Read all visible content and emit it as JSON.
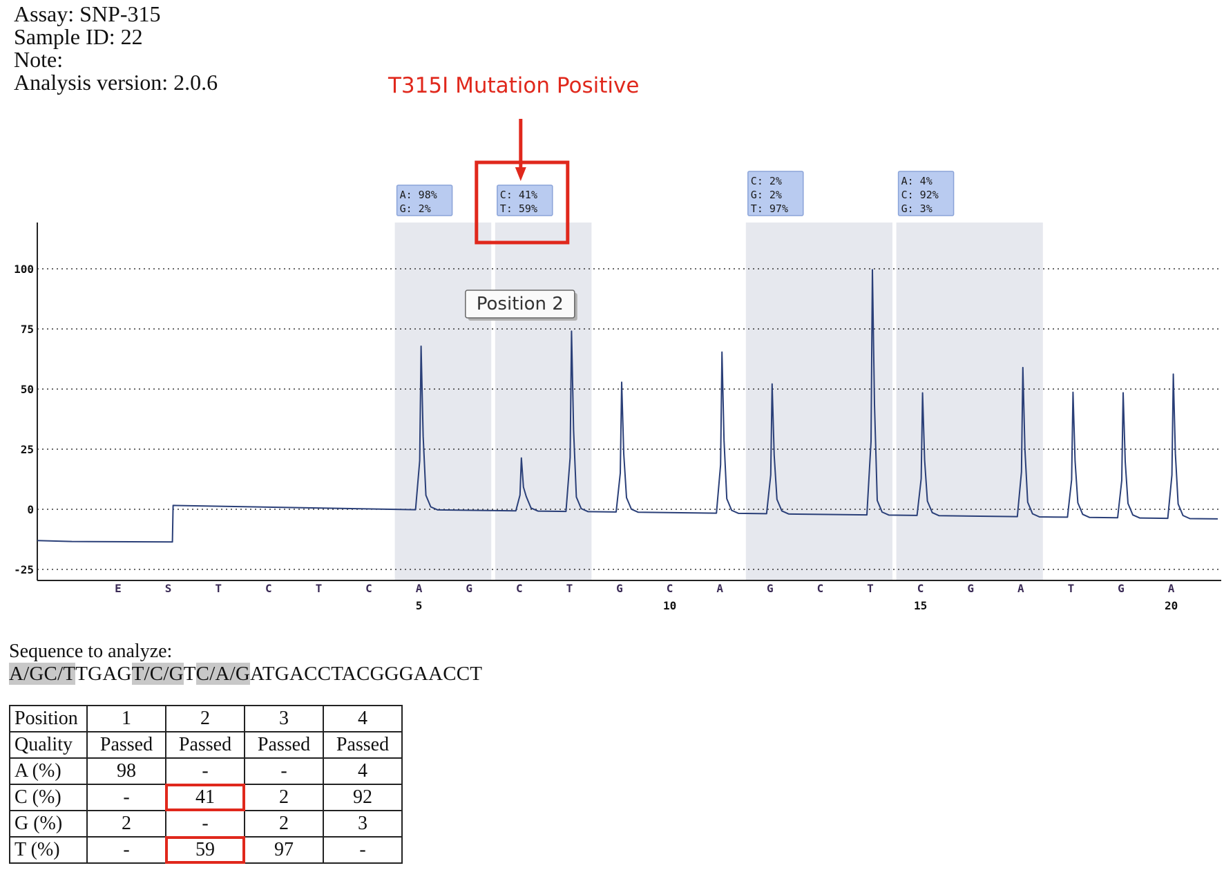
{
  "header": {
    "assay": "Assay: SNP-315",
    "sample_id": "Sample ID: 22",
    "note": "Note:",
    "analysis_version": "Analysis version: 2.0.6"
  },
  "annotations": {
    "mutation_label": "T315I Mutation Positive",
    "position_tooltip": "Position 2",
    "highlight_color": "#e0281c"
  },
  "chart_data": {
    "type": "line",
    "title": "",
    "xlabel": "",
    "ylabel": "",
    "ylim": [
      -30,
      118
    ],
    "yticks": [
      -25,
      0,
      25,
      50,
      75,
      100
    ],
    "grid": "horizontal dotted",
    "line_color": "#2a3f78",
    "dispensation_order": [
      "E",
      "S",
      "T",
      "C",
      "T",
      "C",
      "A",
      "G",
      "C",
      "T",
      "G",
      "C",
      "A",
      "G",
      "C",
      "T",
      "C",
      "G",
      "A",
      "T",
      "G",
      "A"
    ],
    "dispensation_numbers": [
      {
        "index": 5,
        "label": "5"
      },
      {
        "index": 10,
        "label": "10"
      },
      {
        "index": 15,
        "label": "15"
      },
      {
        "index": 20,
        "label": "20"
      }
    ],
    "peaks": [
      {
        "dispensation": "A",
        "index": 5,
        "height": 68
      },
      {
        "dispensation": "C",
        "index": 7,
        "height": 22
      },
      {
        "dispensation": "T",
        "index": 8,
        "height": 75
      },
      {
        "dispensation": "G",
        "index": 9,
        "height": 54
      },
      {
        "dispensation": "A",
        "index": 11,
        "height": 67
      },
      {
        "dispensation": "G",
        "index": 12,
        "height": 54
      },
      {
        "dispensation": "T",
        "index": 14,
        "height": 102
      },
      {
        "dispensation": "C",
        "index": 15,
        "height": 51
      },
      {
        "dispensation": "A",
        "index": 17,
        "height": 62
      },
      {
        "dispensation": "T",
        "index": 18,
        "height": 52
      },
      {
        "dispensation": "G",
        "index": 19,
        "height": 52
      },
      {
        "dispensation": "A",
        "index": 20,
        "height": 60
      }
    ],
    "baseline": {
      "initial": -13,
      "after_substrate": 1,
      "end": -4
    },
    "variable_positions": [
      {
        "position": 1,
        "dispensations": [
          5,
          6
        ],
        "labels": [
          "A: 98%",
          "G: 2%"
        ]
      },
      {
        "position": 2,
        "dispensations": [
          7,
          8
        ],
        "labels": [
          "C: 41%",
          "T: 59%"
        ]
      },
      {
        "position": 3,
        "dispensations": [
          12,
          14
        ],
        "labels": [
          "C: 2%",
          "G: 2%",
          "T: 97%"
        ]
      },
      {
        "position": 4,
        "dispensations": [
          15,
          17
        ],
        "labels": [
          "A: 4%",
          "C: 92%",
          "G: 3%"
        ]
      }
    ]
  },
  "sequence": {
    "title": "Sequence to analyze:",
    "segments": [
      {
        "text": "A/GC/T",
        "highlight": true
      },
      {
        "text": "TGAG",
        "highlight": false
      },
      {
        "text": "T/C/G",
        "highlight": true
      },
      {
        "text": "T",
        "highlight": false
      },
      {
        "text": "C/A/G",
        "highlight": true
      },
      {
        "text": "ATGACCTACGGGAACCT",
        "highlight": false
      }
    ]
  },
  "results_table": {
    "rows": [
      {
        "head": "Position",
        "cells": [
          "1",
          "2",
          "3",
          "4"
        ]
      },
      {
        "head": "Quality",
        "cells": [
          "Passed",
          "Passed",
          "Passed",
          "Passed"
        ]
      },
      {
        "head": "A (%)",
        "cells": [
          "98",
          "-",
          "-",
          "4"
        ]
      },
      {
        "head": "C (%)",
        "cells": [
          "-",
          "41",
          "2",
          "92"
        ]
      },
      {
        "head": "G (%)",
        "cells": [
          "2",
          "-",
          "2",
          "3"
        ]
      },
      {
        "head": "T (%)",
        "cells": [
          "-",
          "59",
          "97",
          "-"
        ]
      }
    ],
    "highlighted_cells": [
      "C (%)|2",
      "T (%)|2"
    ]
  }
}
